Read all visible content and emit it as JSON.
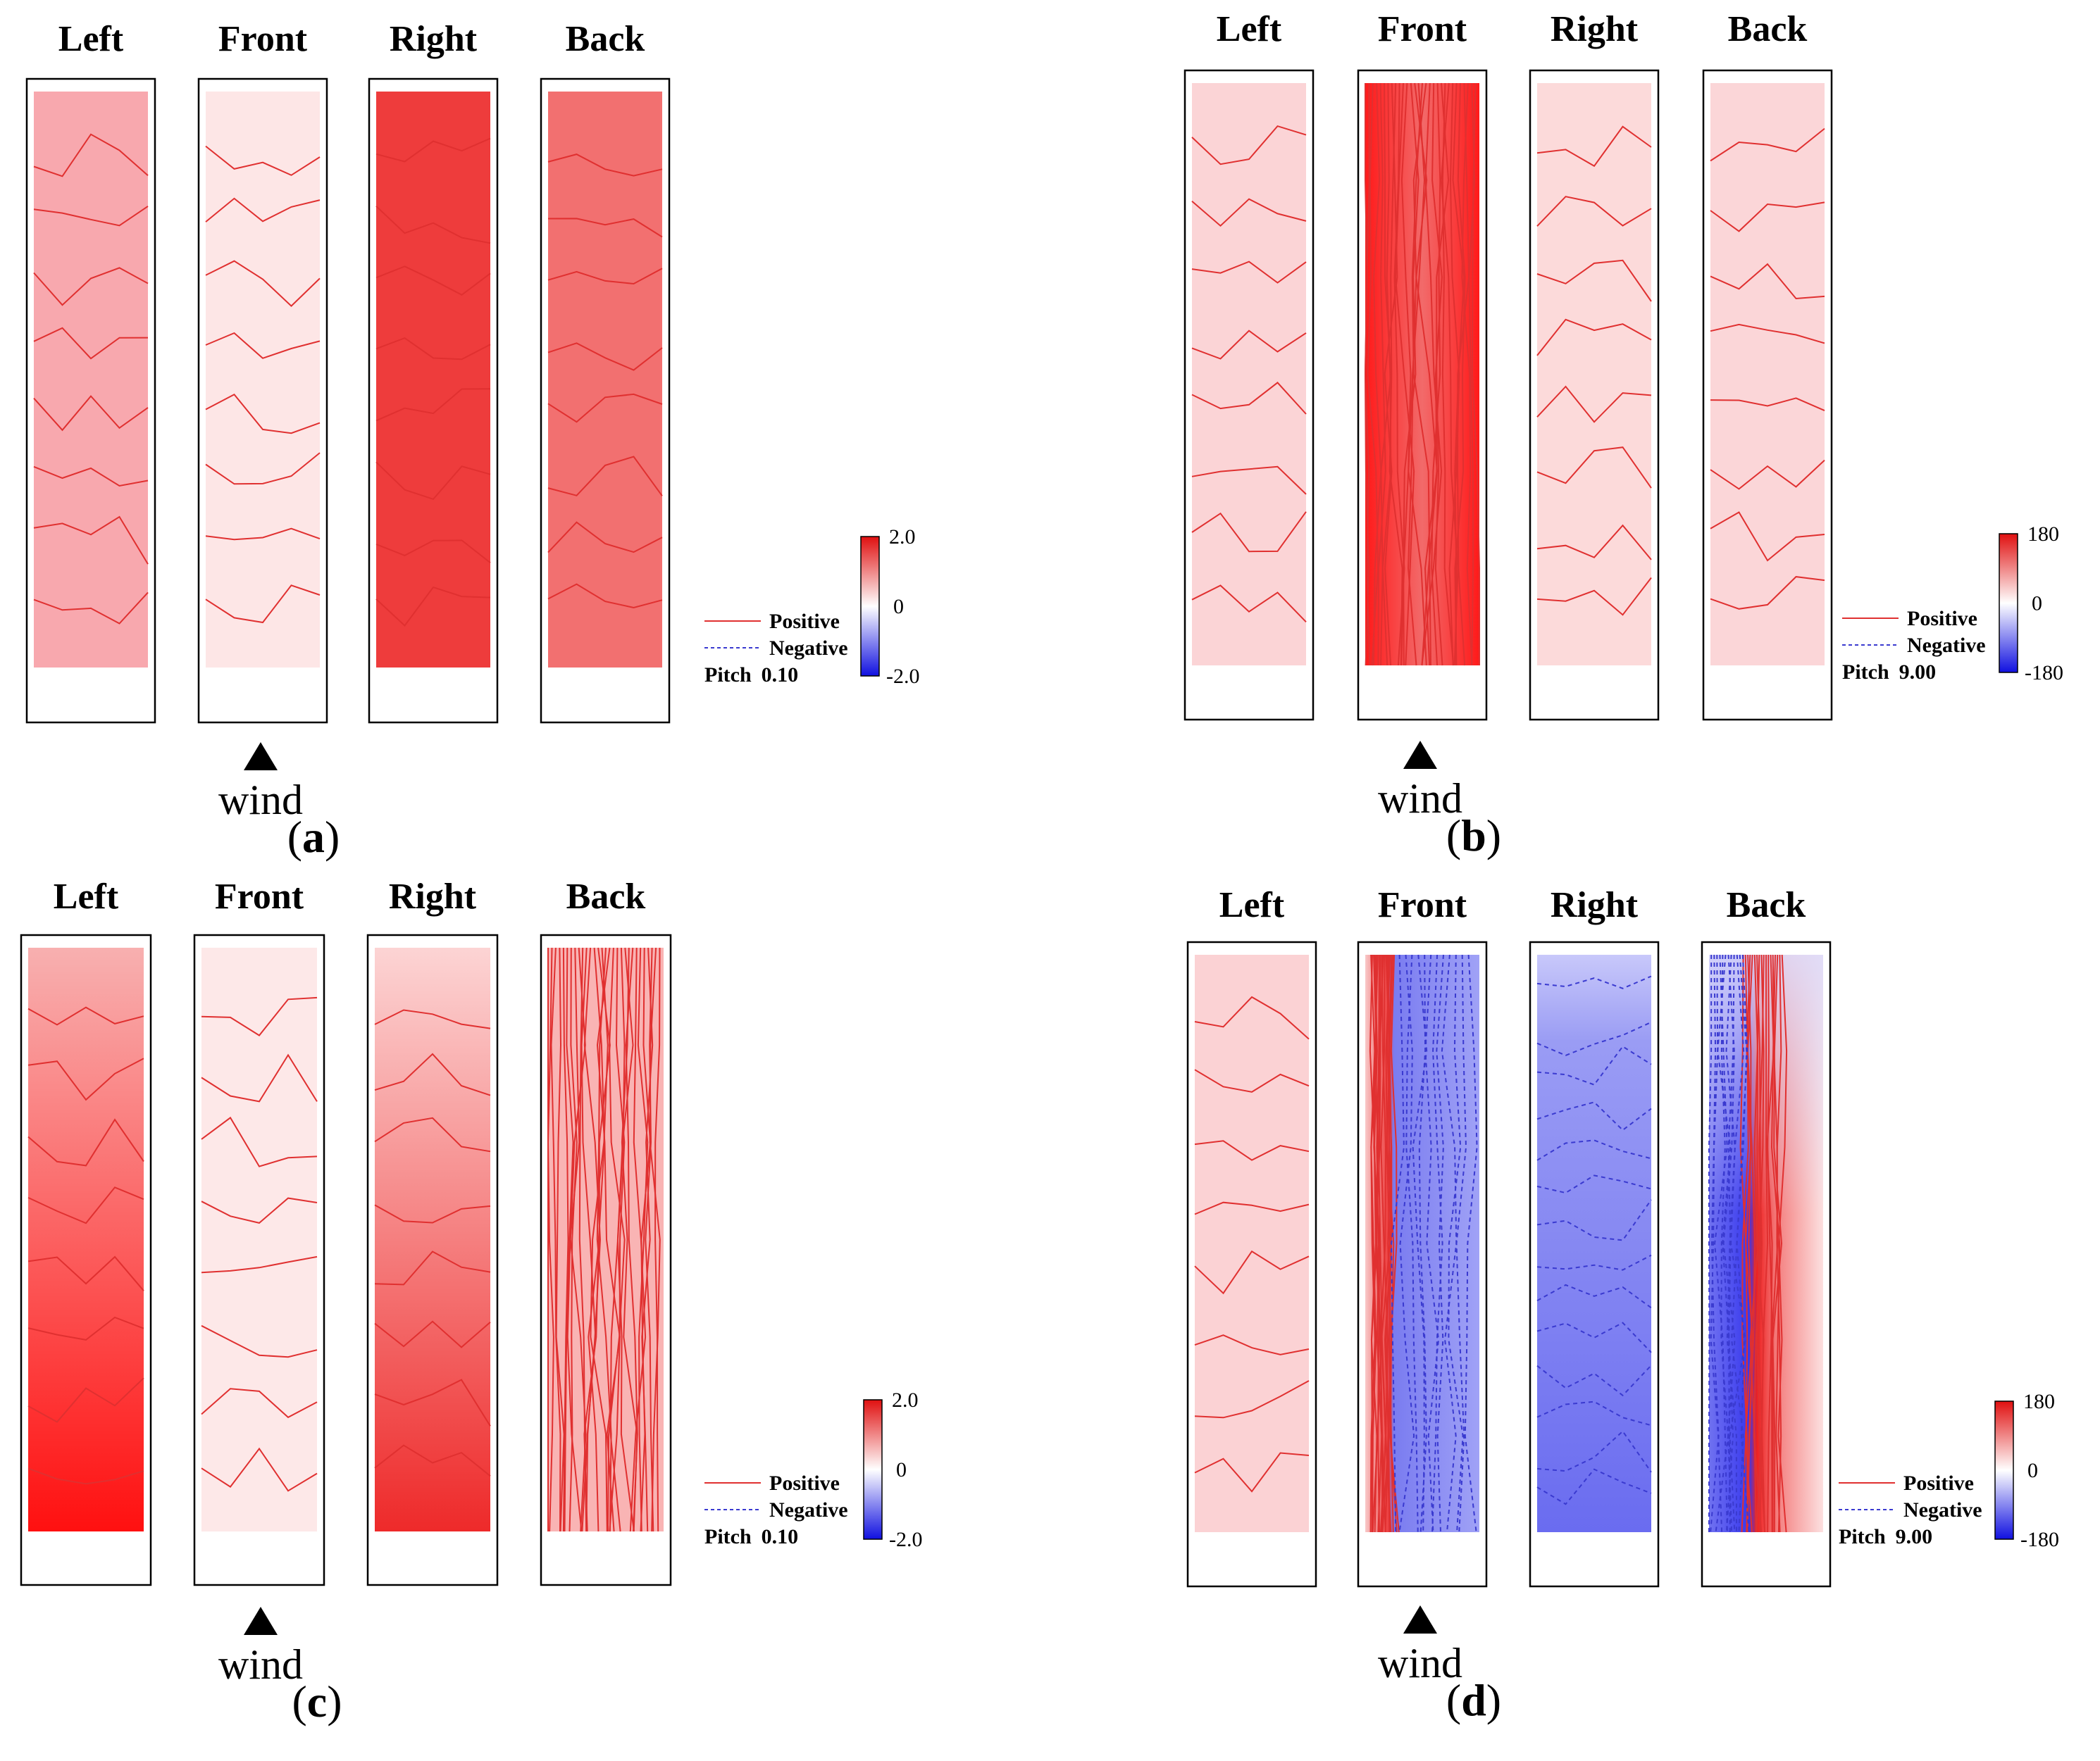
{
  "figure": {
    "colors": {
      "positive_line": "#e03030",
      "negative_line": "#3a3ad0",
      "scale_top": "#e01010",
      "scale_mid": "#ffffff",
      "scale_bottom": "#1010e0",
      "frame": "#000000"
    },
    "wind_label": "wind",
    "legend": {
      "positive": "Positive",
      "negative": "Negative",
      "pitch_label": "Pitch"
    },
    "panels": [
      {
        "id": "a",
        "caption_open": "(",
        "caption_letter": "a",
        "caption_close": ")",
        "pitch_value": "0.10",
        "scale": {
          "max": "2.0",
          "mid": "0",
          "min": "-2.0"
        },
        "faces": [
          {
            "name": "Left",
            "fill": "#f8a8ae",
            "lines": "pos"
          },
          {
            "name": "Front",
            "fill": "#fde6e6",
            "lines": "pos"
          },
          {
            "name": "Right",
            "fill": "#ee3c3c",
            "lines": "pos"
          },
          {
            "name": "Back",
            "fill": "#f27070",
            "lines": "pos"
          }
        ]
      },
      {
        "id": "b",
        "caption_open": "(",
        "caption_letter": "b",
        "caption_close": ")",
        "pitch_value": "9.00",
        "scale": {
          "max": "180",
          "mid": "0",
          "min": "-180"
        },
        "faces": [
          {
            "name": "Left",
            "fill": "#fbd4d6",
            "lines": "pos"
          },
          {
            "name": "Front",
            "fill": "#ee3030",
            "lines": "pos-dense"
          },
          {
            "name": "Right",
            "fill": "#fcdada",
            "lines": "pos"
          },
          {
            "name": "Back",
            "fill": "#fbd6d8",
            "lines": "pos"
          }
        ]
      },
      {
        "id": "c",
        "caption_open": "(",
        "caption_letter": "c",
        "caption_close": ")",
        "pitch_value": "0.10",
        "scale": {
          "max": "2.0",
          "mid": "0",
          "min": "-2.0"
        },
        "faces": [
          {
            "name": "Left",
            "fill": "#f46060",
            "lines": "pos"
          },
          {
            "name": "Front",
            "fill": "#fde8e8",
            "lines": "pos"
          },
          {
            "name": "Right",
            "fill": "#f48888",
            "lines": "pos"
          },
          {
            "name": "Back",
            "fill": "#f9b4b4",
            "lines": "pos-dense"
          }
        ]
      },
      {
        "id": "d",
        "caption_open": "(",
        "caption_letter": "d",
        "caption_close": ")",
        "pitch_value": "9.00",
        "scale": {
          "max": "180",
          "mid": "0",
          "min": "-180"
        },
        "faces": [
          {
            "name": "Left",
            "fill": "#fbd2d4",
            "lines": "pos"
          },
          {
            "name": "Front",
            "fill": "#8a8cf4",
            "lines": "mixed"
          },
          {
            "name": "Right",
            "fill": "#8e90f2",
            "lines": "neg"
          },
          {
            "name": "Back",
            "fill": "#f6a0a4",
            "lines": "mixed-back"
          }
        ]
      }
    ]
  }
}
